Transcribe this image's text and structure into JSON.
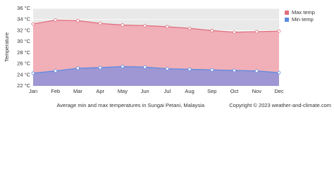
{
  "chart_data": {
    "type": "area",
    "y_label": "Temperature",
    "caption": "Average min and max temperatures in Sungai Petani, Malaysia",
    "copyright": "Copyright © 2023  weather-and-climate.com",
    "categories": [
      "Jan",
      "Feb",
      "Mar",
      "Apr",
      "May",
      "Jun",
      "Jul",
      "Aug",
      "Sep",
      "Oct",
      "Nov",
      "Dec"
    ],
    "series": [
      {
        "name": "Max temp",
        "color": "#e0707e",
        "fill": "#f2a9b3",
        "values": [
          33.2,
          33.9,
          33.8,
          33.3,
          33.0,
          32.9,
          32.7,
          32.4,
          32.0,
          31.7,
          31.8,
          31.9
        ]
      },
      {
        "name": "Min temp",
        "color": "#5b8be0",
        "fill": "#8f93d8",
        "values": [
          24.3,
          24.7,
          25.2,
          25.3,
          25.5,
          25.4,
          25.1,
          25.0,
          24.9,
          24.8,
          24.7,
          24.4
        ]
      }
    ],
    "ylim": [
      22,
      36
    ],
    "yticks": [
      {
        "value": 22,
        "label": "22 °C"
      },
      {
        "value": 24,
        "label": "24 °C"
      },
      {
        "value": 26,
        "label": "26 °C"
      },
      {
        "value": 28,
        "label": "28 °C"
      },
      {
        "value": 30,
        "label": "30 °C"
      },
      {
        "value": 32,
        "label": "32 °C"
      },
      {
        "value": 34,
        "label": "34 °C"
      },
      {
        "value": 36,
        "label": "36 °C"
      }
    ],
    "grid": true
  }
}
